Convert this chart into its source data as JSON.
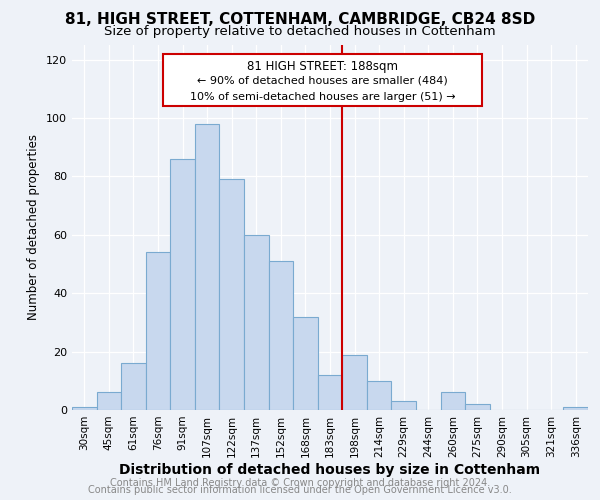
{
  "title1": "81, HIGH STREET, COTTENHAM, CAMBRIDGE, CB24 8SD",
  "title2": "Size of property relative to detached houses in Cottenham",
  "xlabel": "Distribution of detached houses by size in Cottenham",
  "ylabel": "Number of detached properties",
  "footer1": "Contains HM Land Registry data © Crown copyright and database right 2024.",
  "footer2": "Contains public sector information licensed under the Open Government Licence v3.0.",
  "bin_labels": [
    "30sqm",
    "45sqm",
    "61sqm",
    "76sqm",
    "91sqm",
    "107sqm",
    "122sqm",
    "137sqm",
    "152sqm",
    "168sqm",
    "183sqm",
    "198sqm",
    "214sqm",
    "229sqm",
    "244sqm",
    "260sqm",
    "275sqm",
    "290sqm",
    "305sqm",
    "321sqm",
    "336sqm"
  ],
  "bar_heights": [
    1,
    6,
    16,
    54,
    86,
    98,
    79,
    60,
    51,
    32,
    12,
    19,
    10,
    3,
    0,
    6,
    2,
    0,
    0,
    0,
    1
  ],
  "bar_color": "#c8d8ee",
  "bar_edge_color": "#7aaad0",
  "vline_x": 10.5,
  "vline_label": "81 HIGH STREET: 188sqm",
  "annotation_line1": "← 90% of detached houses are smaller (484)",
  "annotation_line2": "10% of semi-detached houses are larger (51) →",
  "box_color": "#cc0000",
  "ylim": [
    0,
    125
  ],
  "yticks": [
    0,
    20,
    40,
    60,
    80,
    100,
    120
  ],
  "bg_color": "#eef2f8",
  "grid_color": "#ffffff",
  "title1_fontsize": 11,
  "title2_fontsize": 9.5,
  "xlabel_fontsize": 10,
  "ylabel_fontsize": 8.5,
  "footer_fontsize": 7,
  "annotation_fontsize": 8.5
}
